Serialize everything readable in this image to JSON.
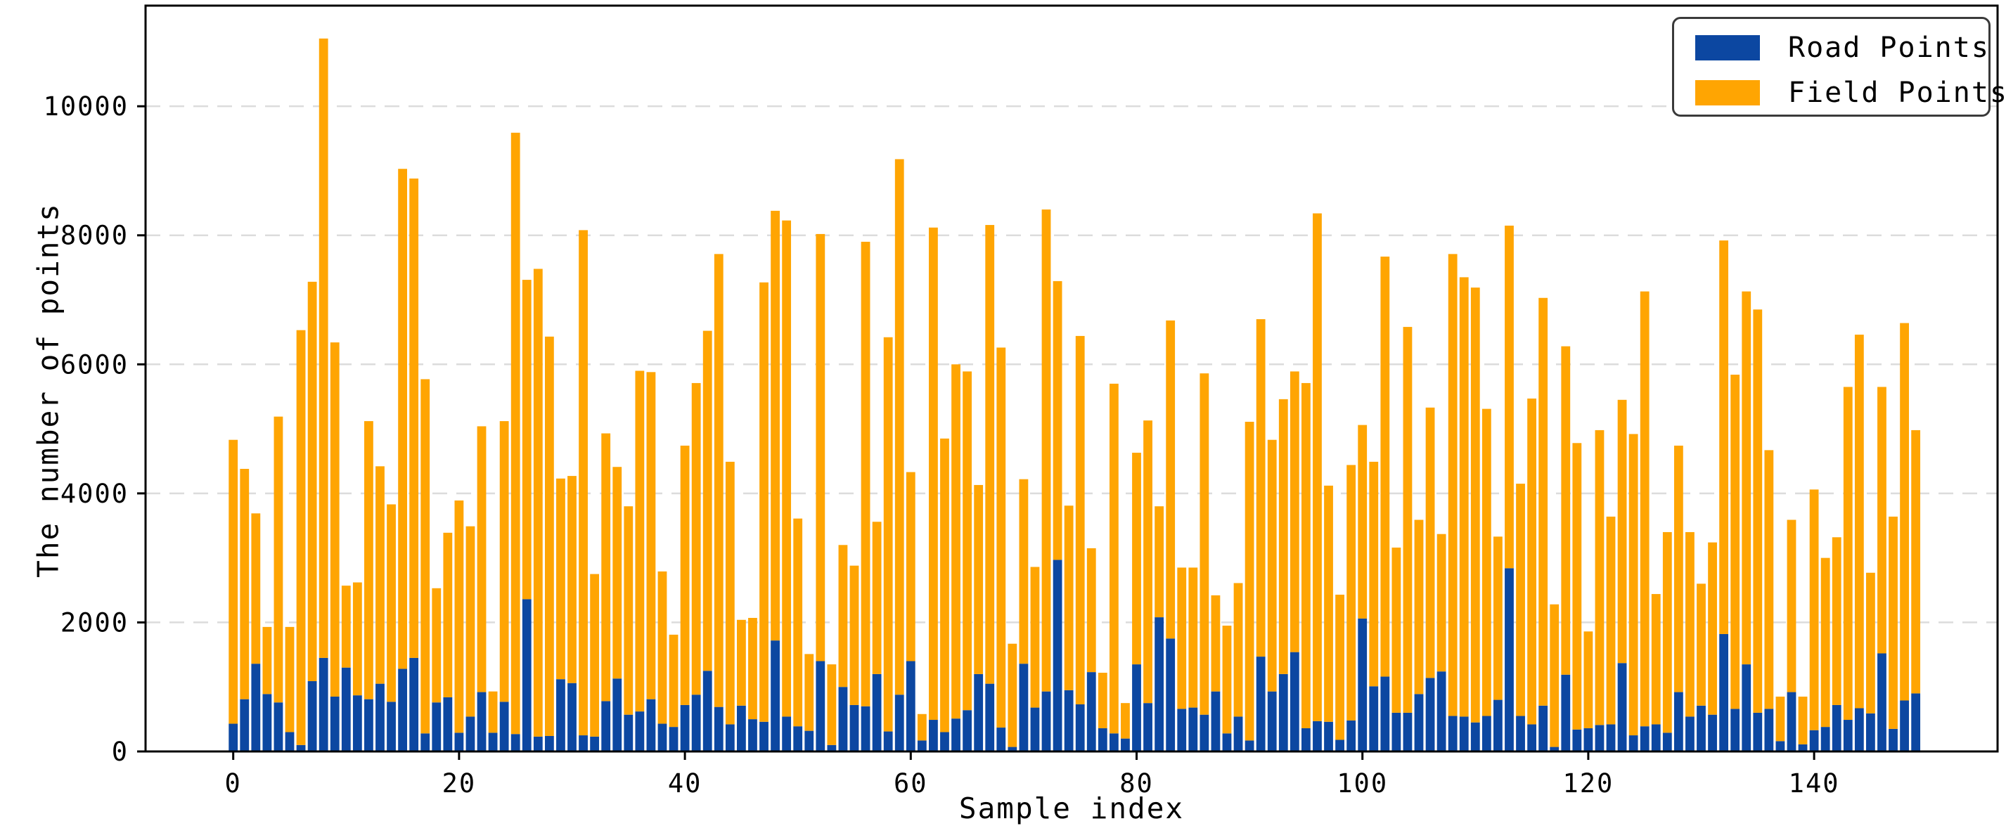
{
  "figure": {
    "xlabel": "Sample index",
    "ylabel": "The number of points",
    "background": "#ffffff",
    "frame_color": "#000000",
    "grid_color": "#dcdcdc"
  },
  "legend": {
    "position": "upper right",
    "entries": [
      {
        "label": "Road Points",
        "color": "#0c47a1"
      },
      {
        "label": "Field Points",
        "color": "#ffa502"
      }
    ]
  },
  "chart_data": {
    "type": "bar",
    "stacked": true,
    "title": "",
    "xlabel": "Sample index",
    "ylabel": "The number of points",
    "x_start": 0,
    "x_end": 149,
    "xticks": [
      0,
      20,
      40,
      60,
      80,
      100,
      120,
      140
    ],
    "yticks": [
      0,
      2000,
      4000,
      6000,
      8000,
      10000
    ],
    "ylim": [
      0,
      11560
    ],
    "grid": "dashed horizontal",
    "legend_position": "upper right",
    "series": [
      {
        "name": "Road Points",
        "color": "#0c47a1",
        "values": [
          430,
          810,
          1360,
          890,
          760,
          300,
          100,
          1090,
          1450,
          850,
          1300,
          870,
          810,
          1050,
          770,
          1280,
          1450,
          280,
          760,
          840,
          290,
          540,
          920,
          290,
          770,
          270,
          2360,
          230,
          240,
          1120,
          1060,
          250,
          230,
          780,
          1130,
          570,
          620,
          810,
          430,
          380,
          720,
          880,
          1250,
          690,
          420,
          710,
          500,
          460,
          1720,
          540,
          390,
          320,
          1400,
          100,
          1000,
          720,
          700,
          1200,
          310,
          880,
          1400,
          170,
          490,
          300,
          510,
          640,
          1200,
          1050,
          370,
          70,
          1360,
          680,
          930,
          2970,
          950,
          730,
          1230,
          360,
          280,
          200,
          1350,
          750,
          2080,
          1750,
          660,
          680,
          570,
          930,
          280,
          540,
          170,
          1470,
          930,
          1200,
          1540,
          360,
          470,
          460,
          180,
          480,
          2060,
          1010,
          1160,
          600,
          600,
          890,
          1140,
          1240,
          550,
          540,
          450,
          550,
          800,
          2840,
          550,
          420,
          710,
          70,
          1190,
          340,
          360,
          410,
          420,
          1370,
          250,
          390,
          420,
          290,
          920,
          540,
          710,
          570,
          1820,
          660,
          1350,
          600,
          660,
          160,
          920,
          110,
          330,
          380,
          720,
          490,
          670,
          590,
          1520,
          350,
          790,
          900
        ]
      },
      {
        "name": "Field Points",
        "color": "#ffa502",
        "values": [
          4400,
          3570,
          2330,
          1040,
          4430,
          1630,
          6430,
          6190,
          9600,
          5490,
          1270,
          1750,
          4310,
          3370,
          3060,
          7750,
          7430,
          5490,
          1770,
          2550,
          3600,
          2950,
          4120,
          640,
          4350,
          9320,
          4950,
          7250,
          6190,
          3110,
          3210,
          7830,
          2520,
          4150,
          3280,
          3230,
          5280,
          5070,
          2360,
          1430,
          4020,
          4830,
          5270,
          7020,
          4070,
          1330,
          1570,
          6810,
          6660,
          7690,
          3220,
          1190,
          6620,
          1250,
          2200,
          2160,
          7200,
          2360,
          6110,
          8300,
          2930,
          410,
          7630,
          4550,
          5490,
          5250,
          2930,
          7110,
          5890,
          1600,
          2860,
          2180,
          7470,
          4320,
          2860,
          5710,
          1920,
          860,
          5420,
          550,
          3280,
          4380,
          1720,
          4930,
          2190,
          2170,
          5290,
          1490,
          1670,
          2070,
          4940,
          5230,
          3900,
          4260,
          4350,
          5350,
          7870,
          3660,
          2250,
          3960,
          3000,
          3480,
          6510,
          2560,
          5980,
          2700,
          4190,
          2130,
          7160,
          6810,
          6740,
          4760,
          2530,
          5310,
          3600,
          5050,
          6320,
          2210,
          5090,
          4440,
          1500,
          4570,
          3220,
          4080,
          4670,
          6740,
          2020,
          3110,
          3820,
          2860,
          1890,
          2670,
          6100,
          5180,
          5780,
          6250,
          4010,
          690,
          2670,
          740,
          3730,
          2620,
          2600,
          5160,
          5790,
          2180,
          4130,
          3290,
          5850,
          4080
        ]
      }
    ]
  }
}
